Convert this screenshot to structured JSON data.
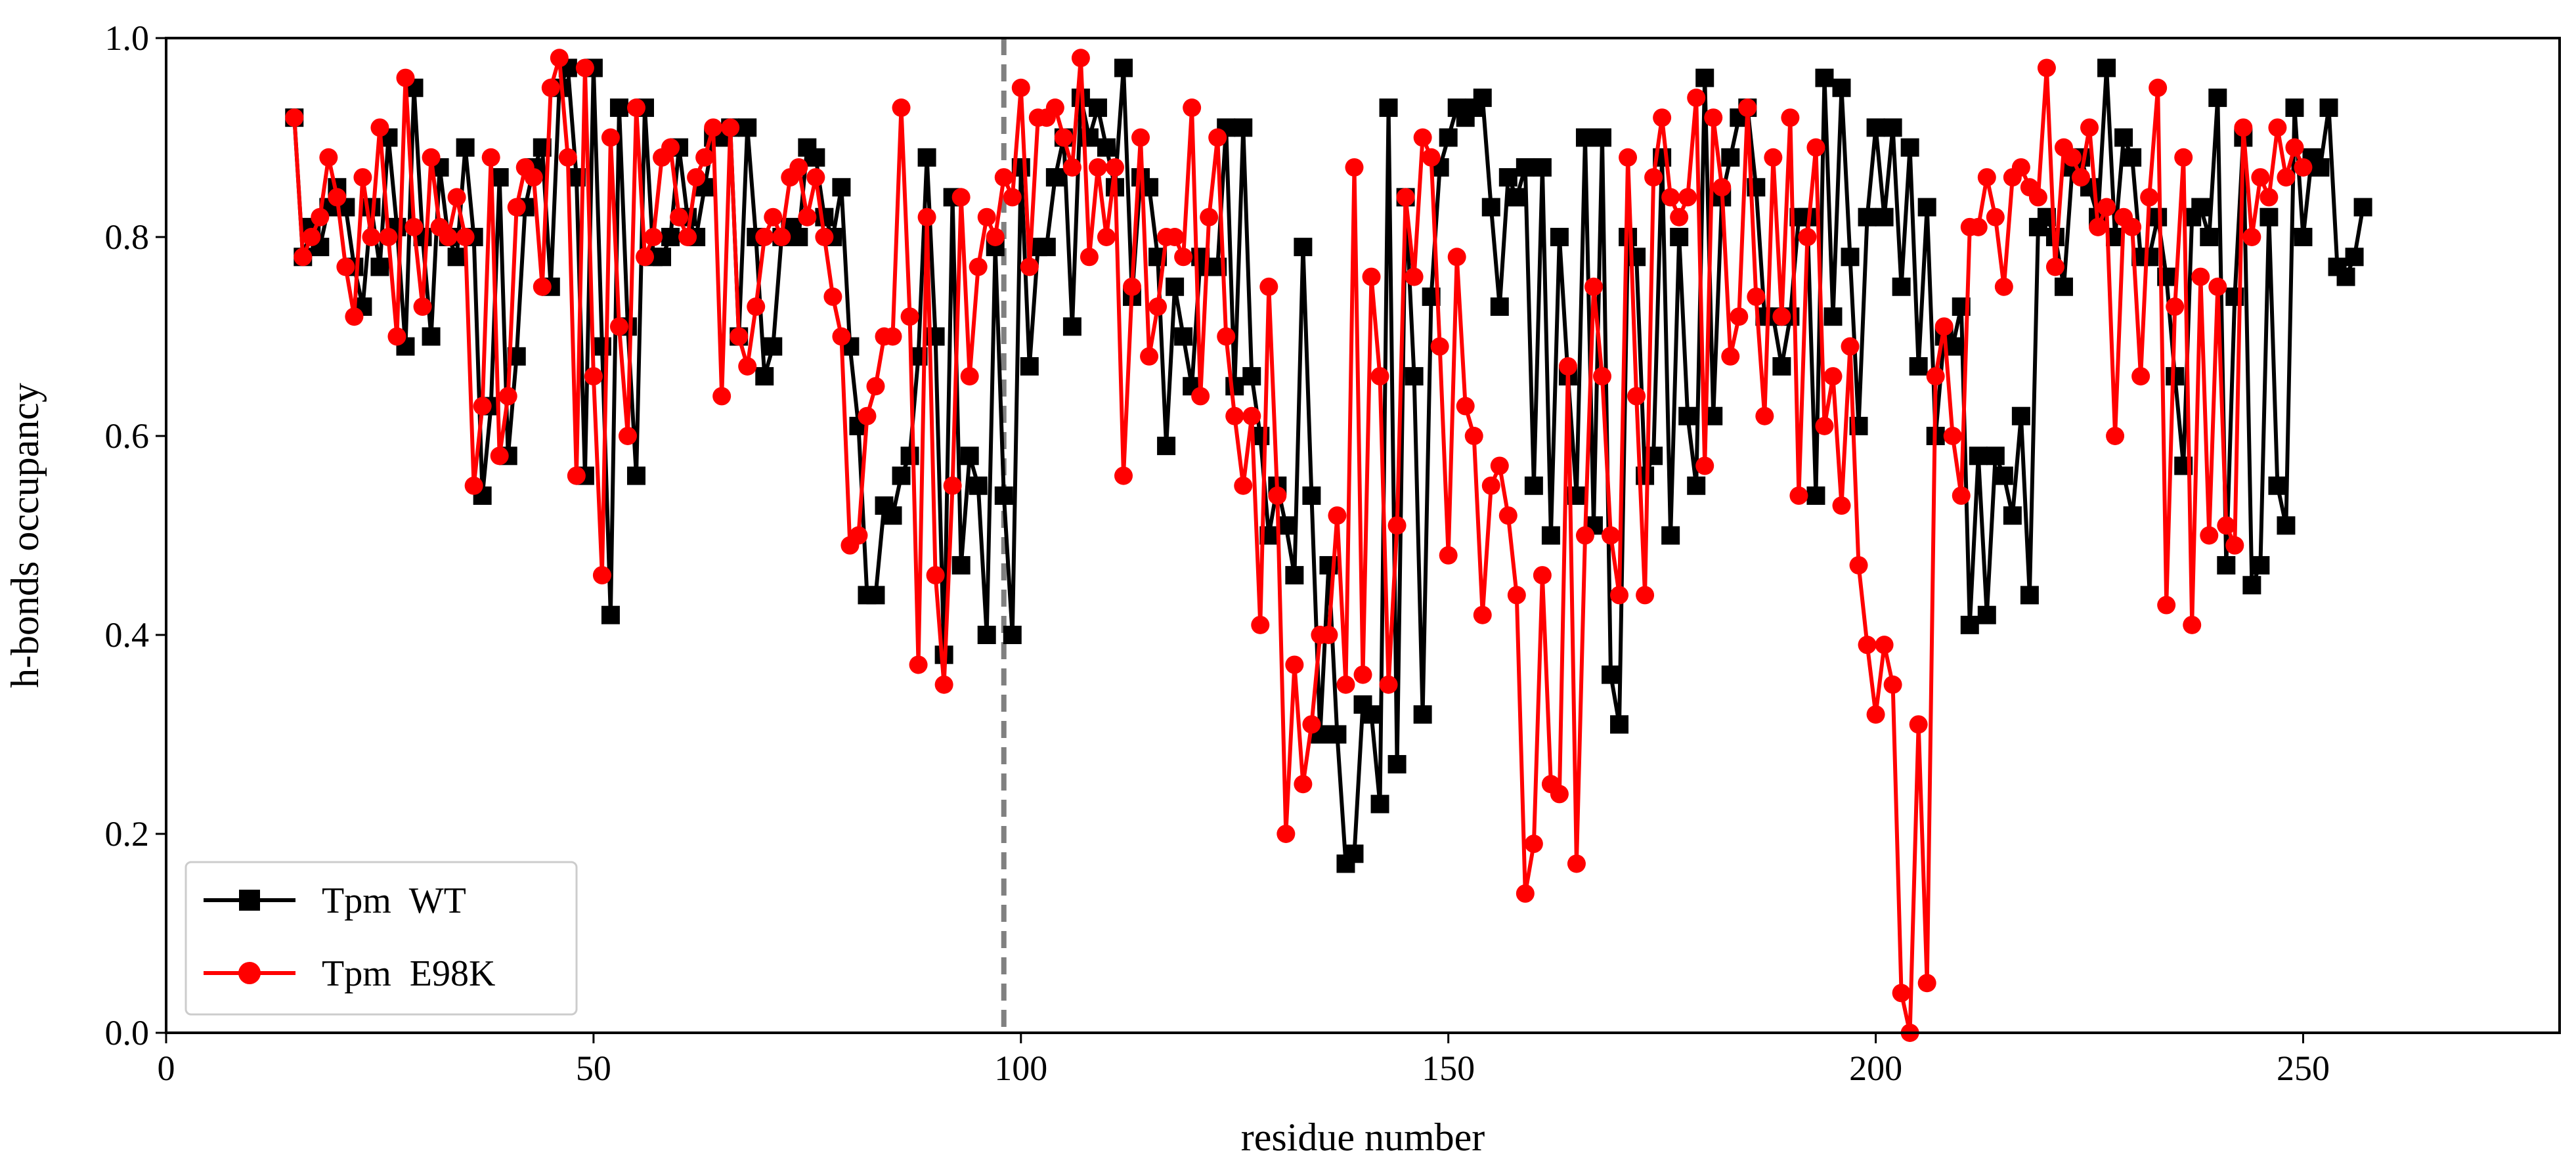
{
  "chart_data": {
    "type": "line",
    "xlabel": "residue number",
    "ylabel": "h-bonds occupancy",
    "xlim": [
      0,
      280
    ],
    "ylim": [
      0.0,
      1.0
    ],
    "xticks": [
      0,
      50,
      100,
      150,
      200,
      250
    ],
    "yticks": [
      0.0,
      0.2,
      0.4,
      0.6,
      0.8,
      1.0
    ],
    "xtick_labels": [
      "0",
      "50",
      "100",
      "150",
      "200",
      "250"
    ],
    "ytick_labels": [
      "0.0",
      "0.2",
      "0.4",
      "0.6",
      "0.8",
      "1.0"
    ],
    "grid": false,
    "legend_position": "lower-left",
    "vline": {
      "x": 98,
      "style": "dashed",
      "color": "#808080"
    },
    "x_start": 15,
    "series": [
      {
        "name": "Tpm  WT",
        "color": "#000000",
        "marker": "square",
        "values": [
          0.92,
          0.78,
          0.81,
          0.79,
          0.83,
          0.85,
          0.83,
          0.77,
          0.73,
          0.83,
          0.77,
          0.9,
          0.81,
          0.69,
          0.95,
          0.8,
          0.7,
          0.87,
          0.8,
          0.78,
          0.89,
          0.8,
          0.54,
          0.63,
          0.86,
          0.58,
          0.68,
          0.83,
          0.87,
          0.89,
          0.75,
          0.95,
          0.97,
          0.86,
          0.56,
          0.97,
          0.69,
          0.42,
          0.93,
          0.71,
          0.56,
          0.93,
          0.78,
          0.78,
          0.8,
          0.89,
          0.82,
          0.8,
          0.85,
          0.9,
          0.9,
          0.91,
          0.7,
          0.91,
          0.8,
          0.66,
          0.69,
          0.8,
          0.81,
          0.8,
          0.89,
          0.88,
          0.82,
          0.8,
          0.85,
          0.69,
          0.61,
          0.44,
          0.44,
          0.53,
          0.52,
          0.56,
          0.58,
          0.68,
          0.88,
          0.7,
          0.38,
          0.84,
          0.47,
          0.58,
          0.55,
          0.4,
          0.79,
          0.54,
          0.4,
          0.87,
          0.67,
          0.79,
          0.79,
          0.86,
          0.9,
          0.71,
          0.94,
          0.9,
          0.93,
          0.89,
          0.85,
          0.97,
          0.74,
          0.86,
          0.85,
          0.78,
          0.59,
          0.75,
          0.7,
          0.65,
          0.78,
          0.77,
          0.77,
          0.91,
          0.65,
          0.91,
          0.66,
          0.6,
          0.5,
          0.55,
          0.51,
          0.46,
          0.79,
          0.54,
          0.3,
          0.47,
          0.3,
          0.17,
          0.18,
          0.33,
          0.32,
          0.23,
          0.93,
          0.27,
          0.84,
          0.66,
          0.32,
          0.74,
          0.87,
          0.9,
          0.93,
          0.92,
          0.93,
          0.94,
          0.83,
          0.73,
          0.86,
          0.84,
          0.87,
          0.55,
          0.87,
          0.5,
          0.8,
          0.66,
          0.54,
          0.9,
          0.51,
          0.9,
          0.36,
          0.31,
          0.8,
          0.78,
          0.56,
          0.58,
          0.88,
          0.5,
          0.8,
          0.62,
          0.55,
          0.96,
          0.62,
          0.84,
          0.88,
          0.92,
          0.93,
          0.85,
          0.72,
          0.72,
          0.67,
          0.72,
          0.82,
          0.82,
          0.54,
          0.96,
          0.72,
          0.95,
          0.78,
          0.61,
          0.82,
          0.91,
          0.82,
          0.91,
          0.75,
          0.89,
          0.67,
          0.83,
          0.6,
          0.7,
          0.69,
          0.73,
          0.41,
          0.58,
          0.42,
          0.58,
          0.56,
          0.52,
          0.62,
          0.44,
          0.81,
          0.82,
          0.8,
          0.75,
          0.87,
          0.88,
          0.85,
          0.82,
          0.97,
          0.8,
          0.9,
          0.88,
          0.78,
          0.78,
          0.82,
          0.76,
          0.66,
          0.57,
          0.82,
          0.83,
          0.8,
          0.94,
          0.47,
          0.74,
          0.9,
          0.45,
          0.47,
          0.82,
          0.55,
          0.51,
          0.93,
          0.8,
          0.88,
          0.87,
          0.93,
          0.77,
          0.76,
          0.78,
          0.83
        ]
      },
      {
        "name": "Tpm  E98K",
        "color": "#ff0000",
        "marker": "circle",
        "values": [
          0.92,
          0.78,
          0.8,
          0.82,
          0.88,
          0.84,
          0.77,
          0.72,
          0.86,
          0.8,
          0.91,
          0.8,
          0.7,
          0.96,
          0.81,
          0.73,
          0.88,
          0.81,
          0.8,
          0.84,
          0.8,
          0.55,
          0.63,
          0.88,
          0.58,
          0.64,
          0.83,
          0.87,
          0.86,
          0.75,
          0.95,
          0.98,
          0.88,
          0.56,
          0.97,
          0.66,
          0.46,
          0.9,
          0.71,
          0.6,
          0.93,
          0.78,
          0.8,
          0.88,
          0.89,
          0.82,
          0.8,
          0.86,
          0.88,
          0.91,
          0.64,
          0.91,
          0.7,
          0.67,
          0.73,
          0.8,
          0.82,
          0.8,
          0.86,
          0.87,
          0.82,
          0.86,
          0.8,
          0.74,
          0.7,
          0.49,
          0.5,
          0.62,
          0.65,
          0.7,
          0.7,
          0.93,
          0.72,
          0.37,
          0.82,
          0.46,
          0.35,
          0.55,
          0.84,
          0.66,
          0.77,
          0.82,
          0.8,
          0.86,
          0.84,
          0.95,
          0.77,
          0.92,
          0.92,
          0.93,
          0.9,
          0.87,
          0.98,
          0.78,
          0.87,
          0.8,
          0.87,
          0.56,
          0.75,
          0.9,
          0.68,
          0.73,
          0.8,
          0.8,
          0.78,
          0.93,
          0.64,
          0.82,
          0.9,
          0.7,
          0.62,
          0.55,
          0.62,
          0.41,
          0.75,
          0.54,
          0.2,
          0.37,
          0.25,
          0.31,
          0.4,
          0.4,
          0.52,
          0.35,
          0.87,
          0.36,
          0.76,
          0.66,
          0.35,
          0.51,
          0.84,
          0.76,
          0.9,
          0.88,
          0.69,
          0.48,
          0.78,
          0.63,
          0.6,
          0.42,
          0.55,
          0.57,
          0.52,
          0.44,
          0.14,
          0.19,
          0.46,
          0.25,
          0.24,
          0.67,
          0.17,
          0.5,
          0.75,
          0.66,
          0.5,
          0.44,
          0.88,
          0.64,
          0.44,
          0.86,
          0.92,
          0.84,
          0.82,
          0.84,
          0.94,
          0.57,
          0.92,
          0.85,
          0.68,
          0.72,
          0.93,
          0.74,
          0.62,
          0.88,
          0.72,
          0.92,
          0.54,
          0.8,
          0.89,
          0.61,
          0.66,
          0.53,
          0.69,
          0.47,
          0.39,
          0.32,
          0.39,
          0.35,
          0.04,
          0.0,
          0.31,
          0.05,
          0.66,
          0.71,
          0.6,
          0.54,
          0.81,
          0.81,
          0.86,
          0.82,
          0.75,
          0.86,
          0.87,
          0.85,
          0.84,
          0.97,
          0.77,
          0.89,
          0.88,
          0.86,
          0.91,
          0.81,
          0.83,
          0.6,
          0.82,
          0.81,
          0.66,
          0.84,
          0.95,
          0.43,
          0.73,
          0.88,
          0.41,
          0.76,
          0.5,
          0.75,
          0.51,
          0.49,
          0.91,
          0.8,
          0.86,
          0.84,
          0.91,
          0.86,
          0.89,
          0.87
        ]
      }
    ]
  }
}
